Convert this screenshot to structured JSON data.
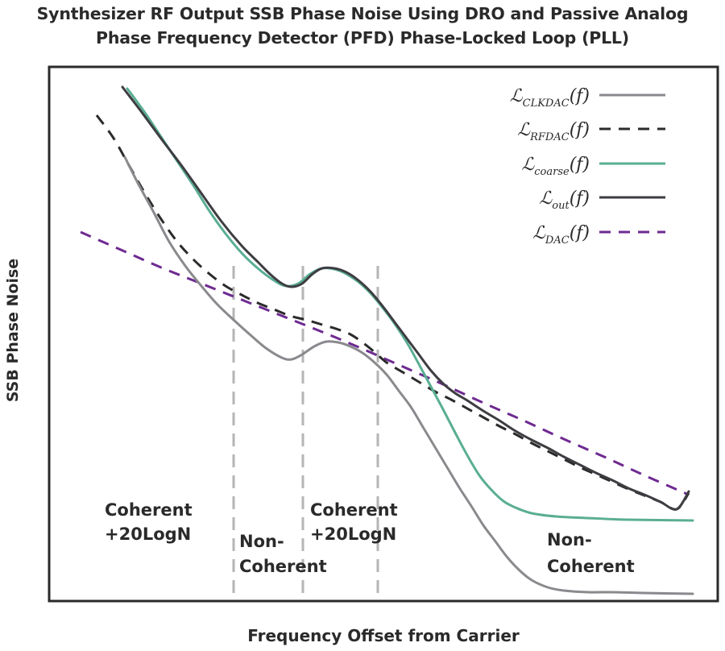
{
  "chart_data": {
    "type": "line",
    "title_lines": [
      "Synthesizer RF Output SSB Phase Noise Using DRO and Passive Analog",
      "Phase Frequency Detector (PFD) Phase-Locked Loop (PLL)"
    ],
    "xlabel": "Frequency Offset from Carrier",
    "ylabel": "SSB Phase Noise",
    "grid": false,
    "legend_position": "top-right",
    "series": [
      {
        "name": "CLKDAC",
        "legend_main": "ℒ",
        "legend_sub": "CLKDAC",
        "legend_arg": "(f)",
        "color": "#8a8a8e",
        "dash": "solid",
        "points": [
          [
            155,
            195
          ],
          [
            170,
            225
          ],
          [
            190,
            262
          ],
          [
            210,
            300
          ],
          [
            230,
            330
          ],
          [
            250,
            355
          ],
          [
            270,
            378
          ],
          [
            290,
            397
          ],
          [
            310,
            415
          ],
          [
            330,
            432
          ],
          [
            350,
            444
          ],
          [
            362,
            446
          ],
          [
            375,
            440
          ],
          [
            390,
            430
          ],
          [
            405,
            424
          ],
          [
            420,
            425
          ],
          [
            435,
            430
          ],
          [
            450,
            438
          ],
          [
            465,
            450
          ],
          [
            480,
            465
          ],
          [
            495,
            485
          ],
          [
            510,
            505
          ],
          [
            525,
            530
          ],
          [
            540,
            555
          ],
          [
            555,
            580
          ],
          [
            570,
            605
          ],
          [
            585,
            628
          ],
          [
            600,
            652
          ],
          [
            615,
            672
          ],
          [
            630,
            692
          ],
          [
            645,
            708
          ],
          [
            660,
            720
          ],
          [
            680,
            729
          ],
          [
            700,
            733
          ],
          [
            730,
            735
          ],
          [
            760,
            735
          ],
          [
            800,
            736
          ],
          [
            860,
            737
          ]
        ]
      },
      {
        "name": "RFDAC",
        "legend_main": "ℒ",
        "legend_sub": "RFDAC",
        "legend_arg": "(f)",
        "color": "#2b2b2b",
        "dash": "dashed",
        "points": [
          [
            120,
            143
          ],
          [
            140,
            170
          ],
          [
            160,
            205
          ],
          [
            180,
            240
          ],
          [
            200,
            272
          ],
          [
            220,
            300
          ],
          [
            240,
            322
          ],
          [
            260,
            340
          ],
          [
            280,
            355
          ],
          [
            300,
            366
          ],
          [
            320,
            376
          ],
          [
            340,
            384
          ],
          [
            360,
            392
          ],
          [
            380,
            397
          ],
          [
            400,
            403
          ],
          [
            420,
            409
          ],
          [
            435,
            415
          ],
          [
            450,
            425
          ],
          [
            465,
            437
          ],
          [
            480,
            450
          ],
          [
            500,
            462
          ],
          [
            520,
            474
          ],
          [
            540,
            486
          ],
          [
            560,
            496
          ],
          [
            580,
            507
          ],
          [
            600,
            518
          ],
          [
            620,
            529
          ],
          [
            640,
            539
          ],
          [
            660,
            550
          ],
          [
            680,
            560
          ],
          [
            700,
            570
          ],
          [
            720,
            580
          ],
          [
            740,
            589
          ],
          [
            760,
            598
          ],
          [
            780,
            607
          ],
          [
            800,
            615
          ],
          [
            820,
            623
          ],
          [
            840,
            632
          ],
          [
            855,
            612
          ]
        ]
      },
      {
        "name": "coarse",
        "legend_main": "ℒ",
        "legend_sub": "coarse",
        "legend_arg": "(f)",
        "color": "#5aae93",
        "dash": "solid",
        "points": [
          [
            158,
            110
          ],
          [
            180,
            140
          ],
          [
            200,
            170
          ],
          [
            220,
            200
          ],
          [
            240,
            230
          ],
          [
            260,
            262
          ],
          [
            280,
            290
          ],
          [
            300,
            314
          ],
          [
            320,
            333
          ],
          [
            340,
            348
          ],
          [
            355,
            355
          ],
          [
            370,
            352
          ],
          [
            385,
            340
          ],
          [
            400,
            333
          ],
          [
            415,
            334
          ],
          [
            430,
            340
          ],
          [
            445,
            350
          ],
          [
            460,
            364
          ],
          [
            475,
            382
          ],
          [
            490,
            402
          ],
          [
            505,
            425
          ],
          [
            520,
            452
          ],
          [
            535,
            480
          ],
          [
            550,
            508
          ],
          [
            565,
            537
          ],
          [
            580,
            565
          ],
          [
            595,
            590
          ],
          [
            610,
            608
          ],
          [
            625,
            622
          ],
          [
            640,
            630
          ],
          [
            660,
            637
          ],
          [
            690,
            641
          ],
          [
            730,
            643
          ],
          [
            780,
            645
          ],
          [
            860,
            646
          ]
        ]
      },
      {
        "name": "out",
        "legend_main": "ℒ",
        "legend_sub": "out",
        "legend_arg": "(f)",
        "color": "#3d3d42",
        "dash": "solid",
        "points": [
          [
            152,
            108
          ],
          [
            175,
            138
          ],
          [
            200,
            172
          ],
          [
            225,
            205
          ],
          [
            250,
            240
          ],
          [
            275,
            275
          ],
          [
            300,
            305
          ],
          [
            320,
            325
          ],
          [
            335,
            340
          ],
          [
            350,
            352
          ],
          [
            362,
            356
          ],
          [
            375,
            352
          ],
          [
            388,
            340
          ],
          [
            400,
            333
          ],
          [
            415,
            333
          ],
          [
            430,
            338
          ],
          [
            445,
            348
          ],
          [
            460,
            362
          ],
          [
            475,
            380
          ],
          [
            490,
            400
          ],
          [
            505,
            420
          ],
          [
            520,
            440
          ],
          [
            535,
            460
          ],
          [
            550,
            476
          ],
          [
            565,
            488
          ],
          [
            580,
            497
          ],
          [
            600,
            510
          ],
          [
            620,
            522
          ],
          [
            640,
            535
          ],
          [
            660,
            546
          ],
          [
            680,
            556
          ],
          [
            700,
            567
          ],
          [
            720,
            577
          ],
          [
            740,
            587
          ],
          [
            760,
            596
          ],
          [
            780,
            606
          ],
          [
            800,
            614
          ],
          [
            820,
            623
          ],
          [
            840,
            632
          ],
          [
            855,
            610
          ]
        ]
      },
      {
        "name": "DAC",
        "legend_main": "ℒ",
        "legend_sub": "DAC",
        "legend_arg": "(f)",
        "color": "#6e2a91",
        "dash": "dashed",
        "points": [
          [
            100,
            288
          ],
          [
            150,
            310
          ],
          [
            200,
            332
          ],
          [
            250,
            352
          ],
          [
            300,
            372
          ],
          [
            350,
            392
          ],
          [
            400,
            412
          ],
          [
            450,
            433
          ],
          [
            500,
            455
          ],
          [
            550,
            477
          ],
          [
            600,
            500
          ],
          [
            650,
            522
          ],
          [
            700,
            545
          ],
          [
            750,
            567
          ],
          [
            800,
            590
          ],
          [
            855,
            614
          ]
        ]
      }
    ],
    "region_dividers_x": [
      290,
      376,
      469
    ],
    "regions": [
      {
        "lines": [
          "Coherent",
          "+20LogN"
        ]
      },
      {
        "lines": [
          "Non-",
          "Coherent"
        ]
      },
      {
        "lines": [
          "Coherent",
          "+20LogN"
        ]
      },
      {
        "lines": [
          "Non-",
          "Coherent"
        ]
      }
    ]
  }
}
